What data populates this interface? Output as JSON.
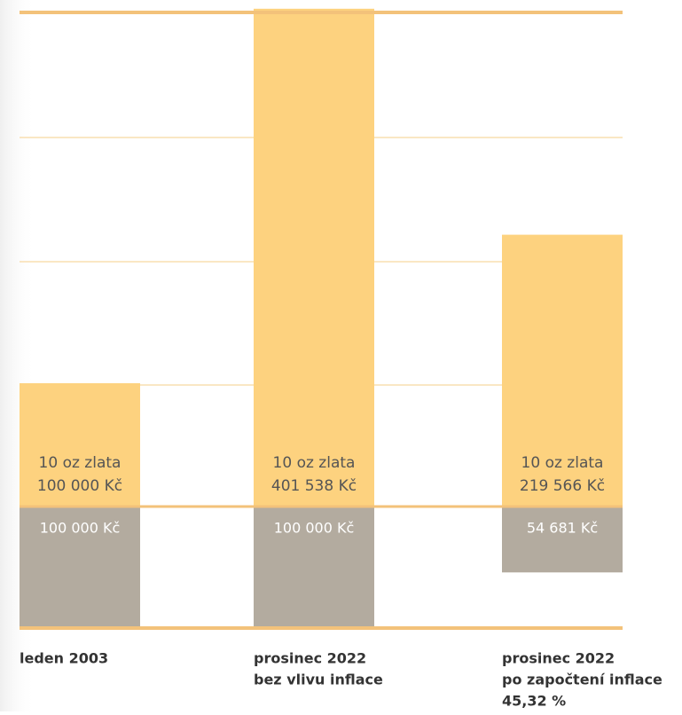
{
  "chart_data": {
    "type": "bar",
    "categories": [
      [
        "leden 2003"
      ],
      [
        "prosinec 2022",
        "bez vlivu inflace"
      ],
      [
        "prosinec 2022",
        "po započtení inflace",
        "45,32 %"
      ]
    ],
    "series": [
      {
        "name": "10 oz zlata",
        "color": "#fdd27f",
        "values": [
          100000,
          401538,
          219566
        ],
        "value_labels": [
          "100 000 Kč",
          "401 538 Kč",
          "219 566 Kč"
        ]
      },
      {
        "color": "#b3ab9f",
        "axis": "y2",
        "values": [
          100000,
          100000,
          54681
        ],
        "value_labels": [
          "100 000 Kč",
          "100 000 Kč",
          "54 681 Kč"
        ]
      }
    ],
    "ylim": [
      0,
      400000
    ],
    "y2lim": [
      0,
      100000
    ]
  }
}
